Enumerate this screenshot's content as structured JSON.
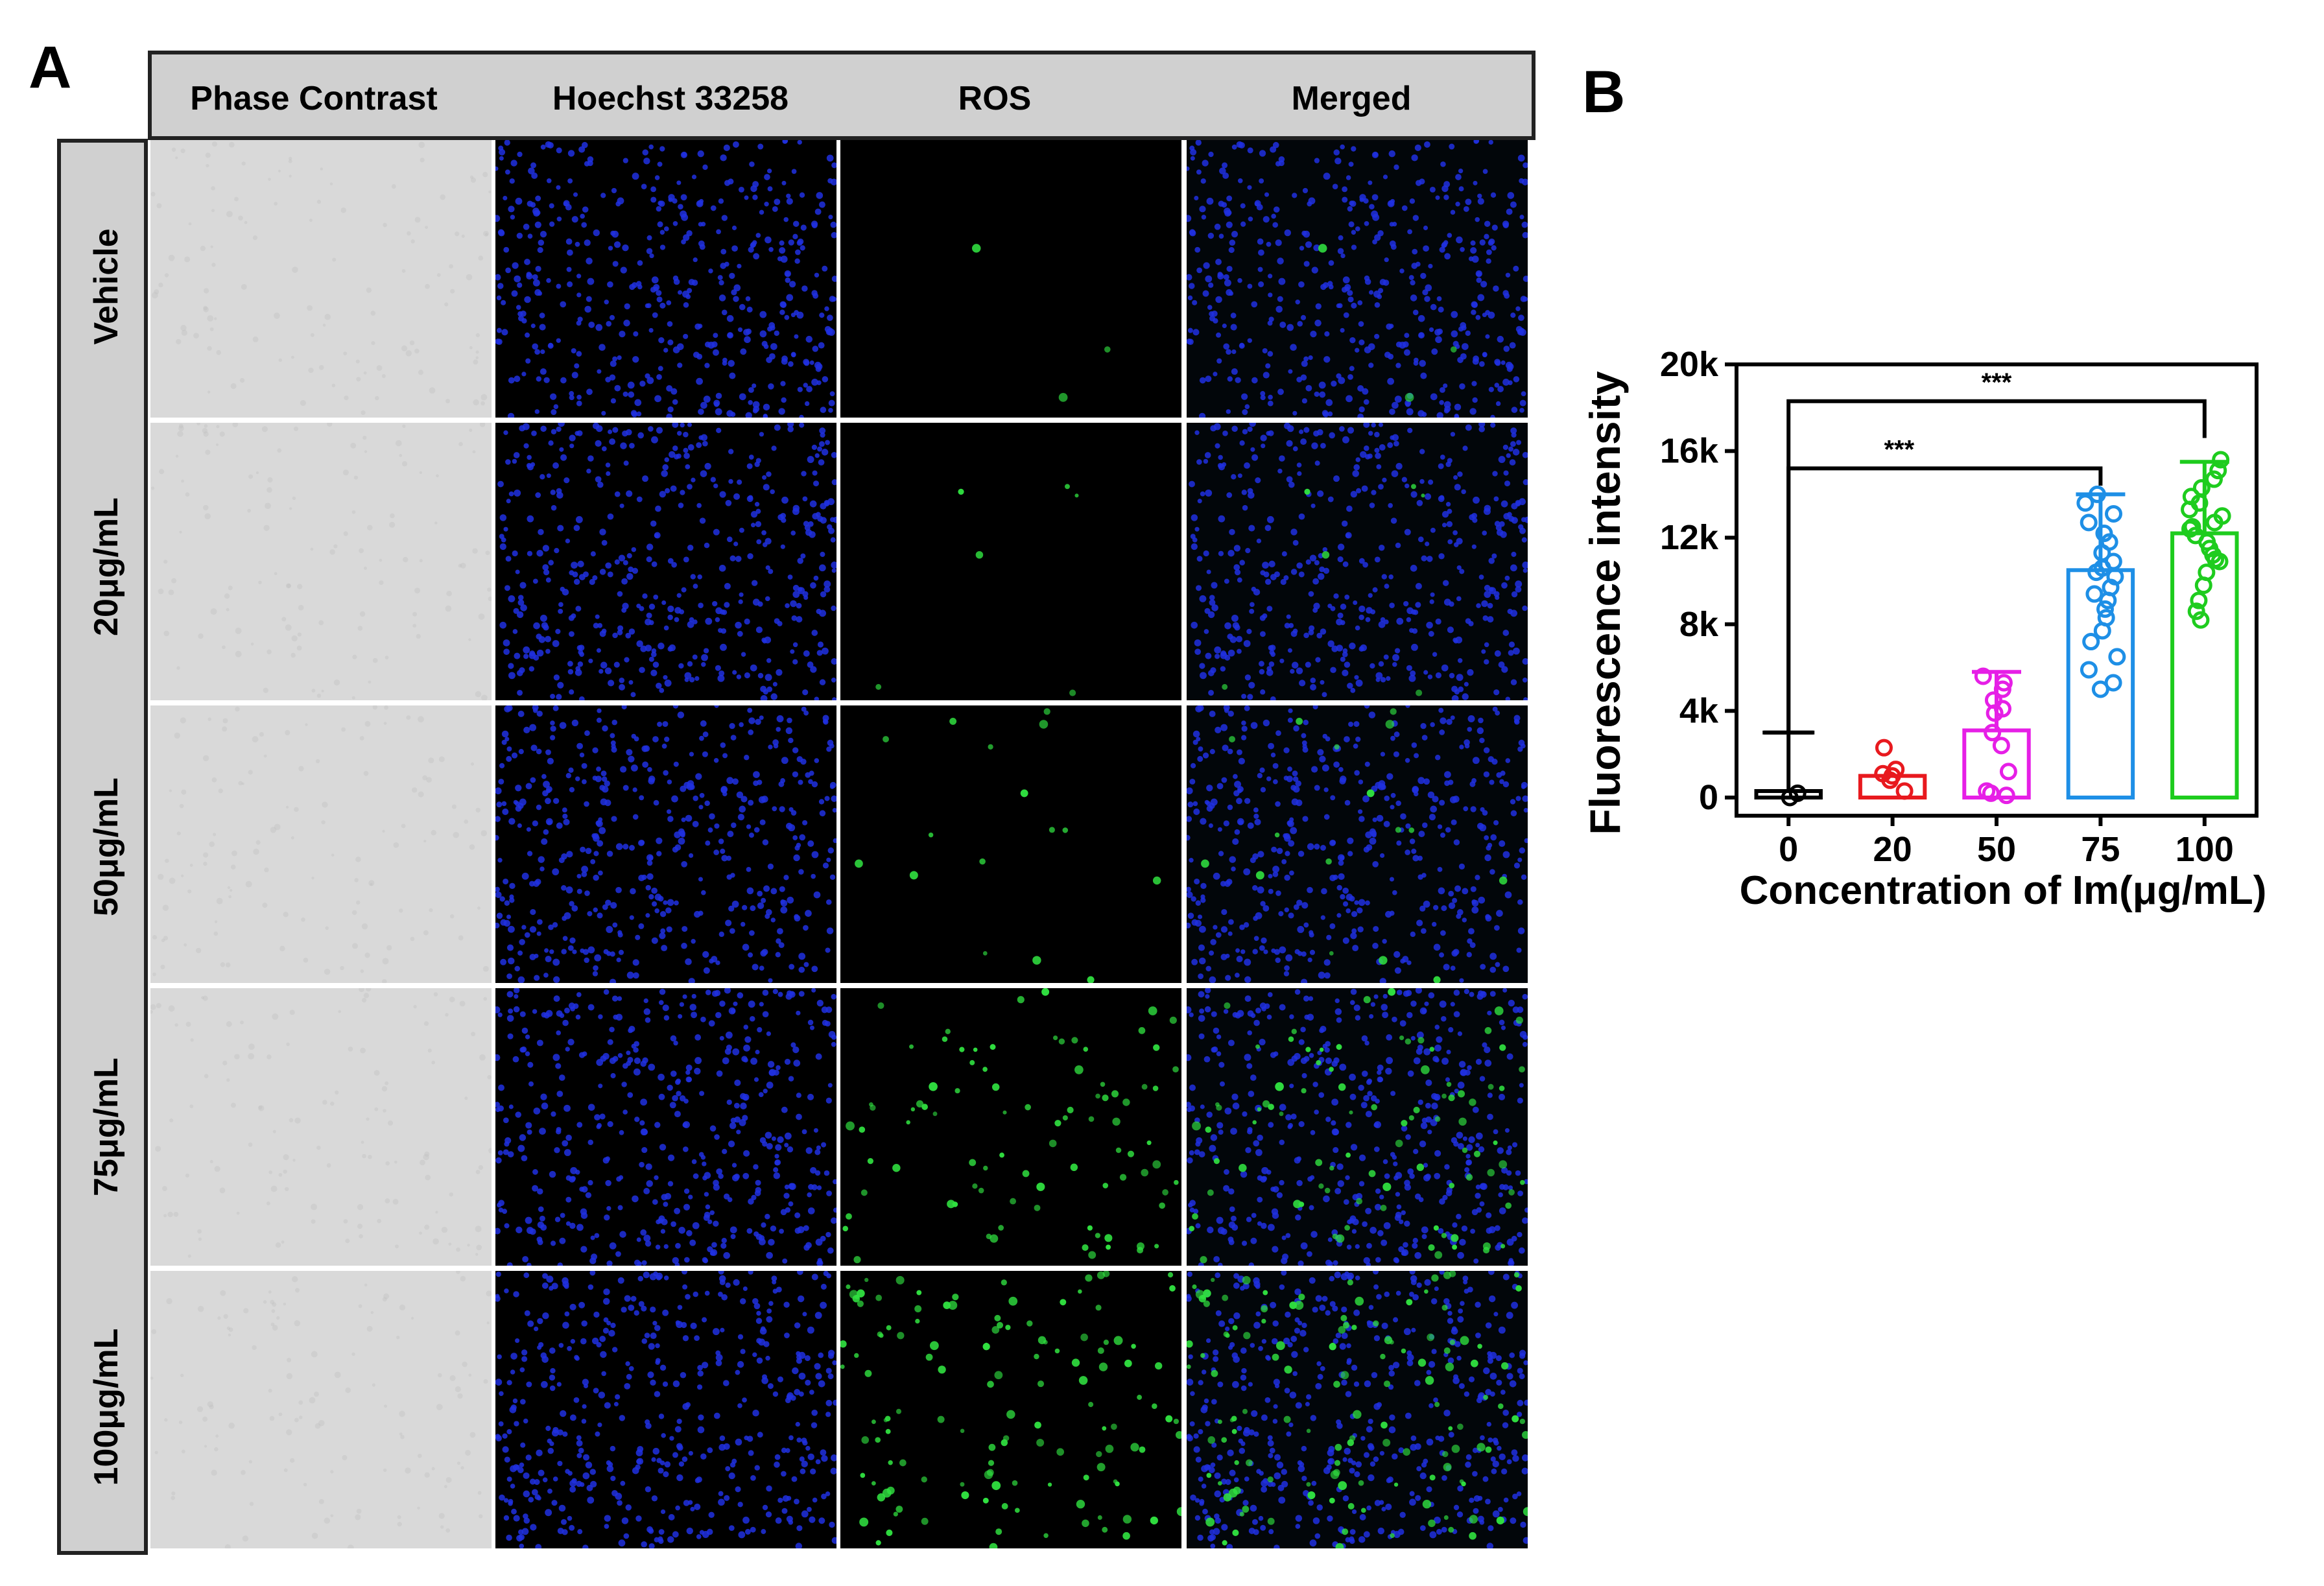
{
  "panel_a": {
    "letter": "A",
    "columns": [
      "Phase Contrast",
      "Hoechst 33258",
      "ROS",
      "Merged"
    ],
    "rows": [
      "Vehicle",
      "20μg/mL",
      "50μg/mL",
      "75μg/mL",
      "100μg/mL"
    ],
    "ros_level_by_row": [
      0.02,
      0.04,
      0.1,
      0.55,
      0.8
    ],
    "colors": {
      "phase": "#d9d9d9",
      "nuclei": "#2030e0",
      "ros": "#30e040",
      "header_bg": "#d0d0d0"
    }
  },
  "panel_b": {
    "letter": "B"
  },
  "chart_data": {
    "type": "bar",
    "categories": [
      "0",
      "20",
      "50",
      "75",
      "100"
    ],
    "values": [
      300,
      1000,
      3100,
      10500,
      12200
    ],
    "errors": [
      2700,
      0,
      2700,
      3500,
      3300
    ],
    "colors": [
      "#000000",
      "#e8191e",
      "#e61fe6",
      "#1e8fe6",
      "#1ecc1e"
    ],
    "points": [
      [
        0,
        200
      ],
      [
        300,
        800,
        1100,
        1300,
        2300,
        1000
      ],
      [
        100,
        300,
        200,
        1200,
        2400,
        3900,
        4500,
        5000,
        5300,
        5600,
        3000,
        4100
      ],
      [
        5000,
        5300,
        5900,
        6500,
        7200,
        7700,
        8300,
        8700,
        9100,
        9700,
        10200,
        10600,
        10900,
        11300,
        11800,
        12200,
        12700,
        13100,
        13600,
        14000,
        10400,
        9400
      ],
      [
        8200,
        8600,
        9100,
        9800,
        10400,
        10900,
        11200,
        11500,
        11800,
        12100,
        12400,
        12700,
        13000,
        13300,
        13600,
        13900,
        14300,
        14700,
        15100,
        15600,
        11000,
        12500
      ]
    ],
    "ylim": [
      0,
      20000
    ],
    "yticks": [
      "0",
      "4k",
      "8k",
      "12k",
      "16k",
      "20k"
    ],
    "ylabel": "Fluorescence intensity",
    "xlabel": "Concentration of Im(μg/mL)",
    "significance": [
      {
        "from": "0",
        "to": "75",
        "label": "***"
      },
      {
        "from": "0",
        "to": "100",
        "label": "***"
      }
    ]
  }
}
